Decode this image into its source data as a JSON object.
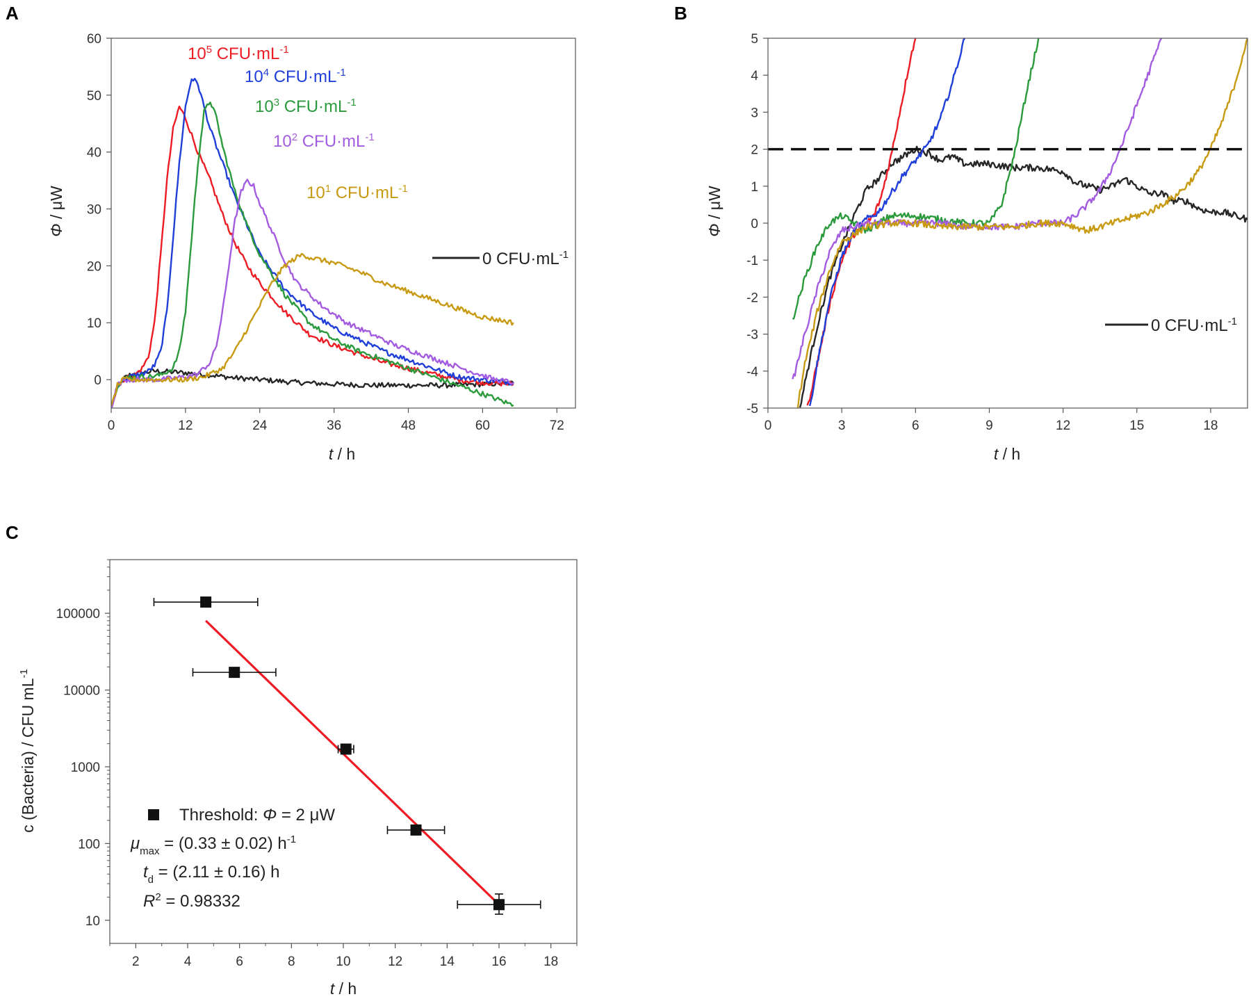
{
  "panels": {
    "A": "A",
    "B": "B",
    "C": "C"
  },
  "chart_data": [
    {
      "panel": "A",
      "type": "line",
      "xlabel_var": "t",
      "xlabel_unit": " / h",
      "ylabel_var": "Φ",
      "ylabel_unit": " / μW",
      "xlim": [
        0,
        75
      ],
      "ylim": [
        -5,
        60
      ],
      "xticks": [
        0,
        12,
        24,
        36,
        48,
        60,
        72
      ],
      "yticks": [
        0,
        10,
        20,
        30,
        40,
        50,
        60
      ],
      "series": [
        {
          "name": "0 CFU·mL-1",
          "label_main": "0 CFU·mL",
          "label_sup": "-1",
          "color": "#262626",
          "x": [
            0,
            1,
            2,
            3,
            5,
            7,
            9,
            12,
            16,
            20,
            24,
            30,
            36,
            42,
            48,
            54,
            60,
            65
          ],
          "y": [
            -5,
            -1.5,
            0.2,
            0.8,
            1.2,
            1.5,
            1.4,
            1.2,
            0.8,
            0.3,
            0,
            -0.5,
            -0.8,
            -1,
            -1,
            -1,
            -0.8,
            -0.6
          ]
        },
        {
          "name": "10^5 CFU·mL-1",
          "label_pre": "10",
          "label_exp": "5",
          "label_main": " CFU·mL",
          "label_sup": "-1",
          "color": "#ed1c24",
          "x": [
            0,
            1,
            2,
            3,
            4,
            5,
            6,
            7,
            8,
            9,
            10,
            11,
            12,
            14,
            16,
            18,
            20,
            22,
            24,
            28,
            32,
            36,
            40,
            44,
            48,
            52,
            56,
            60,
            65
          ],
          "y": [
            -5,
            -1,
            0,
            0.5,
            1,
            2,
            4,
            10,
            22,
            35,
            44,
            48,
            46,
            40,
            35,
            29,
            24,
            20,
            17,
            12,
            8,
            6,
            4.5,
            3,
            2,
            1,
            0,
            -0.5,
            -0.8
          ]
        },
        {
          "name": "10^4 CFU·mL-1",
          "label_pre": "10",
          "label_exp": "4",
          "label_main": " CFU·mL",
          "label_sup": "-1",
          "color": "#1f3fd8",
          "x": [
            0,
            1,
            2,
            3,
            4,
            5,
            6,
            7,
            8,
            9,
            10,
            11,
            12,
            13,
            14,
            15,
            16,
            18,
            20,
            22,
            24,
            28,
            32,
            36,
            40,
            44,
            48,
            52,
            56,
            60,
            65
          ],
          "y": [
            -5,
            -1,
            0,
            0.5,
            0.8,
            1,
            1.5,
            2.5,
            5,
            12,
            25,
            38,
            48,
            53,
            52,
            48,
            44,
            38,
            32,
            27,
            22,
            16,
            12,
            9,
            7,
            5,
            3.5,
            2,
            0.5,
            0,
            -0.5
          ]
        },
        {
          "name": "10^3 CFU·mL-1",
          "label_pre": "10",
          "label_exp": "3",
          "label_main": " CFU·mL",
          "label_sup": "-1",
          "color": "#2a9a3c",
          "x": [
            0,
            1,
            2,
            3,
            4,
            5,
            6,
            8,
            10,
            11,
            12,
            13,
            14,
            15,
            16,
            17,
            18,
            20,
            22,
            24,
            28,
            32,
            36,
            40,
            44,
            48,
            52,
            56,
            60,
            65
          ],
          "y": [
            -5,
            -1,
            0,
            0.5,
            0.5,
            0.5,
            0.5,
            0.8,
            2,
            5,
            12,
            25,
            38,
            47,
            49,
            46,
            41,
            33,
            27,
            22,
            15,
            10,
            7,
            5,
            3.5,
            2,
            0.5,
            -1,
            -2.5,
            -4.5
          ]
        },
        {
          "name": "10^2 CFU·mL-1",
          "label_pre": "10",
          "label_exp": "2",
          "label_main": " CFU·mL",
          "label_sup": "-1",
          "color": "#a35ce0",
          "x": [
            0,
            1,
            2,
            4,
            8,
            12,
            14,
            16,
            17,
            18,
            19,
            20,
            21,
            22,
            23,
            24,
            26,
            28,
            30,
            34,
            38,
            42,
            46,
            50,
            54,
            58,
            62,
            65
          ],
          "y": [
            -5,
            -1,
            0,
            0,
            0,
            0.5,
            1,
            3,
            6,
            12,
            20,
            28,
            33,
            35,
            34,
            31,
            26,
            21,
            17,
            13,
            10,
            8,
            6,
            4.5,
            3,
            1.5,
            0,
            -0.5
          ]
        },
        {
          "name": "10^1 CFU·mL-1",
          "label_pre": "10",
          "label_exp": "1",
          "label_main": " CFU·mL",
          "label_sup": "-1",
          "color": "#c79a12",
          "x": [
            0,
            1,
            2,
            4,
            8,
            12,
            15,
            18,
            20,
            22,
            24,
            26,
            28,
            30,
            31,
            32,
            34,
            36,
            40,
            44,
            48,
            52,
            56,
            60,
            65
          ],
          "y": [
            -5,
            -1,
            0,
            0,
            0,
            0,
            0.5,
            2,
            5,
            9,
            13,
            17,
            20,
            21.5,
            22,
            21.5,
            21,
            20.5,
            19,
            17,
            15.5,
            14,
            12.5,
            11,
            10
          ]
        }
      ]
    },
    {
      "panel": "B",
      "type": "line",
      "xlabel_var": "t",
      "xlabel_unit": " / h",
      "ylabel_var": "Φ",
      "ylabel_unit": " / μW",
      "xlim": [
        0,
        19.5
      ],
      "ylim": [
        -5,
        5
      ],
      "xticks": [
        0,
        3,
        6,
        9,
        12,
        15,
        18
      ],
      "yticks": [
        -5,
        -4,
        -3,
        -2,
        -1,
        0,
        1,
        2,
        3,
        4,
        5
      ],
      "threshold": 2,
      "series": [
        {
          "name": "0 CFU·mL-1",
          "label_main": "0 CFU·mL",
          "label_sup": "-1",
          "color": "#262626",
          "x": [
            1.3,
            1.6,
            2,
            2.5,
            3,
            3.5,
            4,
            4.5,
            5,
            5.5,
            6,
            6.5,
            7,
            7.5,
            8,
            9,
            10,
            11,
            12,
            12.5,
            13,
            13.5,
            14,
            14.5,
            15,
            15.5,
            16,
            16.5,
            17,
            17.5,
            18,
            18.5,
            19,
            19.5
          ],
          "y": [
            -5,
            -4,
            -2.8,
            -1.5,
            -0.6,
            0.2,
            0.9,
            1.2,
            1.6,
            1.8,
            2.0,
            1.9,
            1.7,
            1.8,
            1.6,
            1.6,
            1.5,
            1.5,
            1.4,
            1.1,
            1.0,
            0.9,
            1.0,
            1.2,
            1.0,
            0.8,
            0.8,
            0.6,
            0.6,
            0.4,
            0.3,
            0.3,
            0.2,
            0.1
          ]
        },
        {
          "name": "10^5",
          "color": "#ed1c24",
          "x": [
            1.6,
            2,
            2.5,
            3,
            3.5,
            4,
            4.3,
            4.6,
            5,
            5.3,
            5.6,
            5.8,
            6
          ],
          "y": [
            -5,
            -3.8,
            -2.2,
            -1,
            -0.3,
            0,
            0.2,
            0.7,
            1.8,
            2.8,
            3.8,
            4.5,
            5
          ]
        },
        {
          "name": "10^4",
          "color": "#1f3fd8",
          "x": [
            1.7,
            2,
            2.5,
            3,
            3.5,
            4,
            4.5,
            5,
            5.5,
            6,
            6.5,
            7,
            7.5,
            8
          ],
          "y": [
            -5,
            -3.8,
            -2.1,
            -0.9,
            -0.2,
            0.1,
            0.3,
            0.8,
            1.3,
            1.7,
            2.1,
            2.8,
            3.8,
            5
          ]
        },
        {
          "name": "10^3",
          "color": "#2a9a3c",
          "x": [
            1,
            1.5,
            2,
            2.5,
            3,
            4,
            5,
            6,
            7,
            8,
            9,
            9.5,
            10,
            10.5,
            11
          ],
          "y": [
            -2.6,
            -1.5,
            -0.6,
            0,
            0.2,
            -0.2,
            0.2,
            0.2,
            0.1,
            0,
            0,
            0.5,
            1.8,
            3.5,
            5
          ]
        },
        {
          "name": "10^2",
          "color": "#a35ce0",
          "x": [
            1,
            1.5,
            2,
            2.5,
            3,
            4,
            5,
            6,
            7,
            8,
            9,
            10,
            11,
            12,
            12.5,
            13,
            13.5,
            14,
            14.5,
            15,
            15.5,
            16
          ],
          "y": [
            -4.3,
            -3,
            -1.8,
            -0.8,
            -0.2,
            0,
            0,
            0,
            0,
            -0.1,
            -0.1,
            -0.1,
            0,
            0,
            0.2,
            0.5,
            0.9,
            1.5,
            2.3,
            3.2,
            4.1,
            5
          ]
        },
        {
          "name": "10^1",
          "color": "#c79a12",
          "x": [
            1.2,
            1.5,
            2,
            2.5,
            3,
            4,
            5,
            6,
            7,
            8,
            9,
            10,
            11,
            12,
            13,
            14,
            15,
            15.5,
            16,
            16.5,
            17,
            17.5,
            18,
            18.5,
            19,
            19.5
          ],
          "y": [
            -5,
            -3.8,
            -2.4,
            -1.3,
            -0.5,
            -0.1,
            0,
            0,
            -0.1,
            -0.1,
            -0.1,
            -0.1,
            0,
            0,
            -0.2,
            0,
            0.2,
            0.3,
            0.5,
            0.7,
            1.0,
            1.4,
            2.0,
            2.8,
            3.8,
            5
          ]
        }
      ]
    },
    {
      "panel": "C",
      "type": "scatter",
      "xlabel_var": "t",
      "xlabel_unit": " / h",
      "ylabel": "c (Bacteria) / CFU mL",
      "ylabel_sup": "-1",
      "xlim": [
        1,
        19
      ],
      "ylim_log": [
        5,
        500000
      ],
      "xticks": [
        2,
        4,
        6,
        8,
        10,
        12,
        14,
        16,
        18
      ],
      "yticks": [
        10,
        100,
        1000,
        10000,
        100000
      ],
      "ytick_labels": [
        "10",
        "100",
        "1000",
        "10000",
        "100000"
      ],
      "points": [
        {
          "x": 4.7,
          "y": 140000,
          "xerr": 2.0
        },
        {
          "x": 5.8,
          "y": 17000,
          "xerr": 1.6
        },
        {
          "x": 10.1,
          "y": 1700,
          "xerr": 0.3
        },
        {
          "x": 12.8,
          "y": 150,
          "xerr": 1.1
        },
        {
          "x": 16.0,
          "y": 16,
          "xerr": 1.6,
          "yerr_low": 12,
          "yerr_high": 22
        }
      ],
      "fit": {
        "x": [
          4.7,
          16.0
        ],
        "y": [
          80000,
          16
        ],
        "color": "#ed1c24"
      },
      "legend": {
        "prefix": "Threshold: ",
        "var": "Φ",
        "suffix": " = 2 μW"
      },
      "annotations": {
        "mu_var": "μ",
        "mu_sub": "max",
        "mu_value": " = (0.33 ± 0.02) h",
        "mu_sup": "-1",
        "td_var": "t",
        "td_sub": "d",
        "td_value": " = (2.11 ± 0.16) h",
        "r2_var": "R",
        "r2_sup": "2",
        "r2_value": " = 0.98332"
      }
    }
  ]
}
